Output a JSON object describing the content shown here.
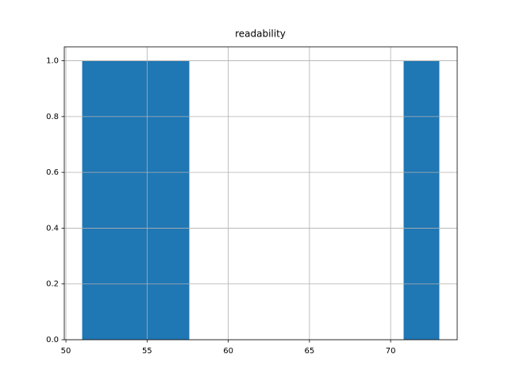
{
  "chart_data": {
    "type": "histogram",
    "title": "readability",
    "bins": [
      51,
      53.2,
      55.4,
      57.6,
      59.8,
      62,
      64.2,
      66.4,
      68.6,
      70.8,
      73
    ],
    "values": [
      1,
      1,
      1,
      0,
      0,
      0,
      0,
      0,
      0,
      1
    ],
    "color": "#1f77b4",
    "xlim": [
      49.9,
      74.1
    ],
    "xticks": [
      50,
      55,
      60,
      65,
      70
    ],
    "ylim": [
      0,
      1.05
    ],
    "yticks": [
      {
        "value": 0,
        "label": "0.0"
      },
      {
        "value": 0.2,
        "label": "0.2"
      },
      {
        "value": 0.4,
        "label": "0.4"
      },
      {
        "value": 0.6,
        "label": "0.6"
      },
      {
        "value": 0.8,
        "label": "0.8"
      },
      {
        "value": 1,
        "label": "1.0"
      }
    ],
    "grid": true
  }
}
